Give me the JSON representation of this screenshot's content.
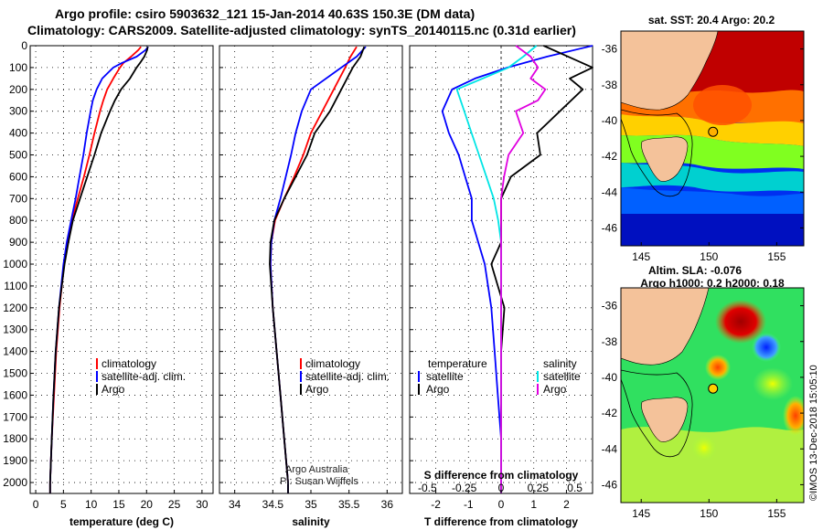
{
  "header": {
    "line1": "Argo profile: csiro 5903632_121 15-Jan-2014 40.63S 150.3E (DM data)",
    "line2": "Climatology: CARS2009. Satellite-adjusted climatology: synTS_20140115.nc (0.31d earlier)"
  },
  "colors": {
    "climatology": "#ff0000",
    "satellite": "#0000ff",
    "argo": "#000000",
    "sal_satellite": "#00e5e5",
    "sal_argo": "#e000e0",
    "land": "#f4c29a"
  },
  "credit": {
    "line1": "Argo Australia",
    "line2": "PI: Susan Wijffels",
    "side": "©IMOS 13-Dec-2018 15:05:10"
  },
  "chart_data": [
    {
      "type": "line",
      "panel": "temperature",
      "xlabel": "temperature (deg C)",
      "ylabel": "",
      "xlim": [
        -1,
        32
      ],
      "ylim": [
        2050,
        0
      ],
      "x_ticks": [
        0,
        5,
        10,
        15,
        20,
        25,
        30
      ],
      "y_ticks": [
        0,
        100,
        200,
        300,
        400,
        500,
        600,
        700,
        800,
        900,
        1000,
        1100,
        1200,
        1300,
        1400,
        1500,
        1600,
        1700,
        1800,
        1900,
        2000
      ],
      "legend": [
        "climatology",
        "satellite-adj. clim.",
        "Argo"
      ],
      "series": [
        {
          "name": "climatology",
          "color_key": "climatology",
          "depth": [
            5,
            20,
            50,
            80,
            100,
            150,
            200,
            250,
            300,
            400,
            500,
            600,
            700,
            800,
            900,
            1000,
            1200,
            1400,
            1600,
            1800,
            2000,
            2050
          ],
          "values": [
            19.0,
            18.5,
            17.2,
            15.8,
            15.2,
            14.0,
            12.9,
            12.2,
            11.6,
            10.6,
            9.7,
            8.7,
            7.6,
            6.5,
            5.7,
            5.1,
            4.3,
            3.7,
            3.3,
            2.9,
            2.6,
            2.6
          ]
        },
        {
          "name": "satellite-adj. clim.",
          "color_key": "satellite",
          "depth": [
            5,
            20,
            50,
            80,
            100,
            150,
            200,
            250,
            300,
            400,
            500,
            600,
            700,
            800,
            900,
            1000,
            1200,
            1400,
            1600,
            1800,
            2000,
            2050
          ],
          "values": [
            20.3,
            19.8,
            18.2,
            15.5,
            14.0,
            12.0,
            11.0,
            10.3,
            9.9,
            9.2,
            8.6,
            7.9,
            7.2,
            6.4,
            5.6,
            5.0,
            4.2,
            3.6,
            3.2,
            2.9,
            2.6,
            2.6
          ]
        },
        {
          "name": "Argo",
          "color_key": "argo",
          "depth": [
            5,
            20,
            50,
            80,
            100,
            150,
            200,
            250,
            300,
            400,
            500,
            600,
            700,
            800,
            900,
            1000,
            1200,
            1400,
            1600,
            1800,
            2000,
            2050
          ],
          "values": [
            20.2,
            20.1,
            19.6,
            18.8,
            18.2,
            17.0,
            15.4,
            14.3,
            13.4,
            11.8,
            10.6,
            9.3,
            8.0,
            6.7,
            5.9,
            5.2,
            4.2,
            3.6,
            3.2,
            2.9,
            2.6,
            2.6
          ]
        }
      ]
    },
    {
      "type": "line",
      "panel": "salinity",
      "xlabel": "salinity",
      "xlim": [
        33.8,
        36.2
      ],
      "ylim": [
        2050,
        0
      ],
      "x_ticks": [
        34,
        34.5,
        35,
        35.5,
        36
      ],
      "legend": [
        "climatology",
        "satellite-adj. clim.",
        "Argo"
      ],
      "series": [
        {
          "name": "climatology",
          "color_key": "climatology",
          "depth": [
            5,
            50,
            100,
            200,
            300,
            400,
            500,
            600,
            700,
            800,
            900,
            1000,
            1200,
            1400,
            1600,
            1800,
            2000,
            2050
          ],
          "values": [
            35.6,
            35.52,
            35.45,
            35.3,
            35.15,
            35.0,
            34.9,
            34.78,
            34.65,
            34.53,
            34.48,
            34.47,
            34.5,
            34.55,
            34.6,
            34.65,
            34.7,
            34.7
          ]
        },
        {
          "name": "satellite-adj. clim.",
          "color_key": "satellite",
          "depth": [
            5,
            50,
            100,
            200,
            300,
            400,
            500,
            600,
            700,
            800,
            900,
            1000,
            1200,
            1400,
            1600,
            1800,
            2000,
            2050
          ],
          "values": [
            35.72,
            35.6,
            35.4,
            35.0,
            34.88,
            34.8,
            34.74,
            34.67,
            34.6,
            34.52,
            34.48,
            34.47,
            34.5,
            34.55,
            34.6,
            34.65,
            34.7,
            34.7
          ]
        },
        {
          "name": "Argo",
          "color_key": "argo",
          "depth": [
            5,
            50,
            100,
            200,
            300,
            400,
            500,
            600,
            700,
            800,
            900,
            1000,
            1200,
            1400,
            1600,
            1800,
            2000,
            2050
          ],
          "values": [
            35.7,
            35.65,
            35.55,
            35.4,
            35.25,
            35.05,
            34.95,
            34.8,
            34.65,
            34.52,
            34.47,
            34.46,
            34.5,
            34.55,
            34.6,
            34.65,
            34.7,
            34.7
          ]
        }
      ]
    },
    {
      "type": "line",
      "panel": "difference",
      "xlabel": "T difference from climatology",
      "x2label": "S difference from climatology",
      "xlim": [
        -2.8,
        2.8
      ],
      "ylim": [
        2050,
        0
      ],
      "x_ticks": [
        -2,
        -1,
        0,
        1,
        2
      ],
      "x2_ticks": [
        -0.5,
        -0.25,
        0,
        0.25,
        0.5
      ],
      "x2_tick_labels": [
        "-0.5",
        "-0.25",
        "0",
        "0.25",
        "0.5"
      ],
      "legend_t_title": "temperature",
      "legend_s_title": "salinity",
      "legend_t": [
        "satellite",
        "Argo"
      ],
      "legend_s": [
        "satellite",
        "Argo"
      ],
      "series": [
        {
          "name": "T satellite",
          "color_key": "satellite",
          "scale": "T",
          "depth": [
            0,
            50,
            100,
            150,
            200,
            300,
            400,
            500,
            600,
            700,
            800,
            900,
            1000,
            1200,
            1400,
            1600,
            1800,
            2000,
            2050
          ],
          "values": [
            2.8,
            1.4,
            0.2,
            -0.8,
            -1.5,
            -1.8,
            -1.6,
            -1.3,
            -1.1,
            -0.9,
            -0.9,
            -0.7,
            -0.5,
            -0.3,
            -0.2,
            -0.1,
            0,
            0,
            0
          ]
        },
        {
          "name": "T Argo",
          "color_key": "argo",
          "scale": "T",
          "depth": [
            0,
            100,
            150,
            200,
            300,
            400,
            500,
            600,
            700,
            800,
            900,
            1000,
            1100,
            1200,
            1400,
            1600,
            1800,
            2000,
            2050
          ],
          "values": [
            1.3,
            2.9,
            2.1,
            2.5,
            1.8,
            1.1,
            1.2,
            0.3,
            0,
            0,
            0,
            -0.3,
            -0.1,
            0.1,
            0,
            0,
            0,
            0,
            0
          ]
        },
        {
          "name": "S satellite",
          "color_key": "sal_satellite",
          "scale": "S",
          "depth": [
            0,
            50,
            100,
            200,
            300,
            400,
            500,
            600,
            700,
            800,
            900,
            1000,
            1200,
            1400,
            1600,
            1800,
            2000,
            2050
          ],
          "values": [
            0.24,
            0.15,
            0.05,
            -0.3,
            -0.25,
            -0.2,
            -0.15,
            -0.1,
            -0.05,
            -0.02,
            0,
            0,
            0,
            0,
            0,
            0,
            0,
            0
          ]
        },
        {
          "name": "S Argo",
          "color_key": "sal_argo",
          "scale": "S",
          "depth": [
            0,
            50,
            100,
            150,
            200,
            250,
            300,
            400,
            500,
            600,
            700,
            800,
            900,
            1000,
            1200,
            1400,
            1600,
            1800,
            2000,
            2050
          ],
          "values": [
            0.1,
            0.2,
            0.25,
            0.2,
            0.3,
            0.25,
            0.1,
            0.15,
            0.05,
            0.02,
            0,
            0,
            0,
            0,
            0,
            0,
            0,
            0,
            0,
            0
          ]
        }
      ]
    },
    {
      "type": "heatmap",
      "panel": "sst-map",
      "title": "sat. SST: 20.4 Argo: 20.2",
      "xlim": [
        143.5,
        157
      ],
      "ylim": [
        -47,
        -35
      ],
      "x_ticks": [
        145,
        150,
        155
      ],
      "y_ticks": [
        -36,
        -38,
        -40,
        -42,
        -44,
        -46
      ],
      "y_tick_labels": [
        "-36",
        "-38",
        "-40",
        "-42",
        "-44",
        "-46"
      ],
      "float_position": {
        "lon": 150.3,
        "lat": -40.63
      },
      "colors": [
        "#0000a0",
        "#0010f0",
        "#0060ff",
        "#00c0ff",
        "#40ff80",
        "#c0ff00",
        "#ffd000",
        "#ff8000",
        "#ff2000",
        "#c00000"
      ]
    },
    {
      "type": "heatmap",
      "panel": "sla-map",
      "title_line1": "Altim. SLA: -0.076",
      "title_line2": "Argo h1000: 0.2 h2000: 0.18",
      "xlim": [
        143.5,
        157
      ],
      "ylim": [
        -47,
        -35
      ],
      "x_ticks": [
        145,
        150,
        155
      ],
      "y_ticks": [
        -36,
        -38,
        -40,
        -42,
        -44,
        -46
      ],
      "y_tick_labels": [
        "-36",
        "-38",
        "-40",
        "-42",
        "-44",
        "-46"
      ],
      "float_position": {
        "lon": 150.3,
        "lat": -40.63
      }
    }
  ]
}
